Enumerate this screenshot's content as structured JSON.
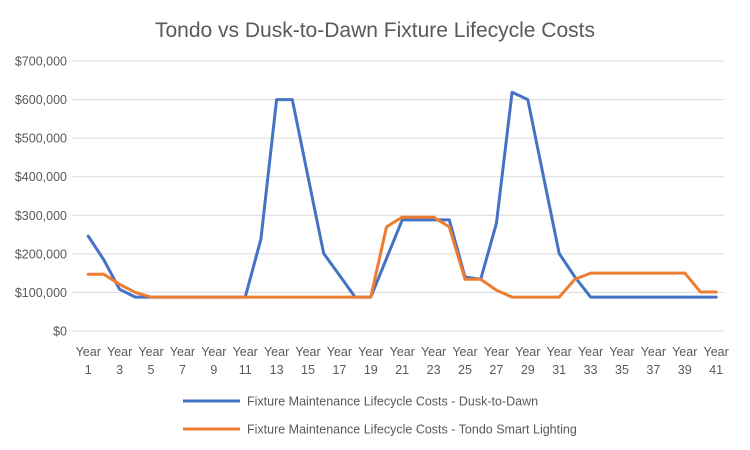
{
  "chart_data": {
    "type": "line",
    "title": "Tondo vs Dusk-to-Dawn Fixture Lifecycle Costs",
    "xlabel": "",
    "ylabel": "",
    "ylim": [
      0,
      700000
    ],
    "yticks": [
      0,
      100000,
      200000,
      300000,
      400000,
      500000,
      600000,
      700000
    ],
    "ytick_labels": [
      "$0",
      "$100,000",
      "$200,000",
      "$300,000",
      "$400,000",
      "$500,000",
      "$600,000",
      "$700,000"
    ],
    "x_prefix": "Year",
    "x": [
      1,
      2,
      3,
      4,
      5,
      6,
      7,
      8,
      9,
      10,
      11,
      12,
      13,
      14,
      15,
      16,
      17,
      18,
      19,
      20,
      21,
      22,
      23,
      24,
      25,
      26,
      27,
      28,
      29,
      30,
      31,
      32,
      33,
      34,
      35,
      36,
      37,
      38,
      39,
      40,
      41
    ],
    "x_tick_numbers_shown": [
      1,
      3,
      5,
      7,
      9,
      11,
      13,
      15,
      17,
      19,
      21,
      23,
      25,
      27,
      29,
      31,
      33,
      35,
      37,
      39,
      41
    ],
    "grid": true,
    "legend_position": "bottom",
    "series": [
      {
        "name": "Fixture Maintenance Lifecycle Costs - Dusk-to-Dawn",
        "color": "#4472C4",
        "values": [
          246000,
          184000,
          108000,
          88000,
          88000,
          88000,
          88000,
          88000,
          88000,
          88000,
          88000,
          238000,
          600000,
          600000,
          400000,
          201000,
          145000,
          88000,
          88000,
          188000,
          288000,
          288000,
          288000,
          288000,
          140000,
          134000,
          279000,
          619000,
          600000,
          400000,
          201000,
          140000,
          88000,
          88000,
          88000,
          88000,
          88000,
          88000,
          88000,
          88000,
          88000
        ]
      },
      {
        "name": "Fixture Maintenance Lifecycle Costs - Tondo Smart Lighting",
        "color": "#ED7D31",
        "values": [
          147000,
          147000,
          121000,
          100000,
          88000,
          88000,
          88000,
          88000,
          88000,
          88000,
          88000,
          88000,
          88000,
          88000,
          88000,
          88000,
          88000,
          88000,
          88000,
          270000,
          295000,
          295000,
          295000,
          270000,
          134000,
          134000,
          106000,
          88000,
          88000,
          88000,
          88000,
          134000,
          150000,
          150000,
          150000,
          150000,
          150000,
          150000,
          150000,
          101000,
          101000
        ]
      }
    ]
  }
}
